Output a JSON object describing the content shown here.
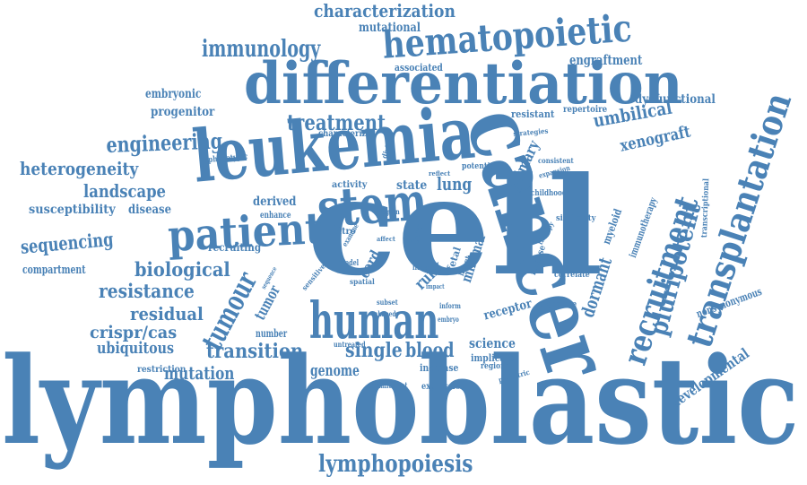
{
  "colors": {
    "text": "#4a82b6",
    "background": "#ffffff"
  },
  "words": [
    "lymphoblastic",
    "cell",
    "cancer",
    "leukemia",
    "differentiation",
    "stem",
    "human",
    "patient",
    "hematopoietic",
    "transplantation",
    "recruitment",
    "tumour",
    "pluripotent",
    "immunology",
    "treatment",
    "engineering",
    "heterogeneity",
    "landscape",
    "sequencing",
    "biological",
    "resistance",
    "residual",
    "crispr/cas",
    "ubiquitous",
    "transition",
    "single",
    "blood",
    "genome",
    "mutation",
    "lymphopoiesis",
    "characterization",
    "mutational",
    "engraftment",
    "umbilical",
    "xenograft",
    "dormant",
    "developmental",
    "embryonic",
    "progenitor",
    "compartment",
    "susceptibility",
    "disease",
    "lung",
    "minimal",
    "primary",
    "dysfunctional",
    "science",
    "receptor",
    "nonsynonymous",
    "runx",
    "tumor",
    "cord",
    "fetal",
    "derived",
    "enhance",
    "state",
    "activity",
    "number",
    "restriction",
    "implicate",
    "increase",
    "expression",
    "commitment",
    "regional",
    "characterize",
    "phenotypic",
    "associated",
    "resistant",
    "repertoire",
    "strategies",
    "consistent",
    "potential",
    "childhood",
    "expansion",
    "myeloid",
    "immunotherapy",
    "transcriptional",
    "similarity",
    "therapy",
    "relapse",
    "correlate",
    "signature",
    "pediatric",
    "vitro",
    "spatial",
    "model",
    "examine",
    "sensitive",
    "sequence",
    "shaped",
    "subset",
    "inform",
    "lineage",
    "latent",
    "impact",
    "untreated",
    "embryo",
    "division",
    "reflect",
    "region",
    "affect",
    "recruiting",
    "ters"
  ]
}
